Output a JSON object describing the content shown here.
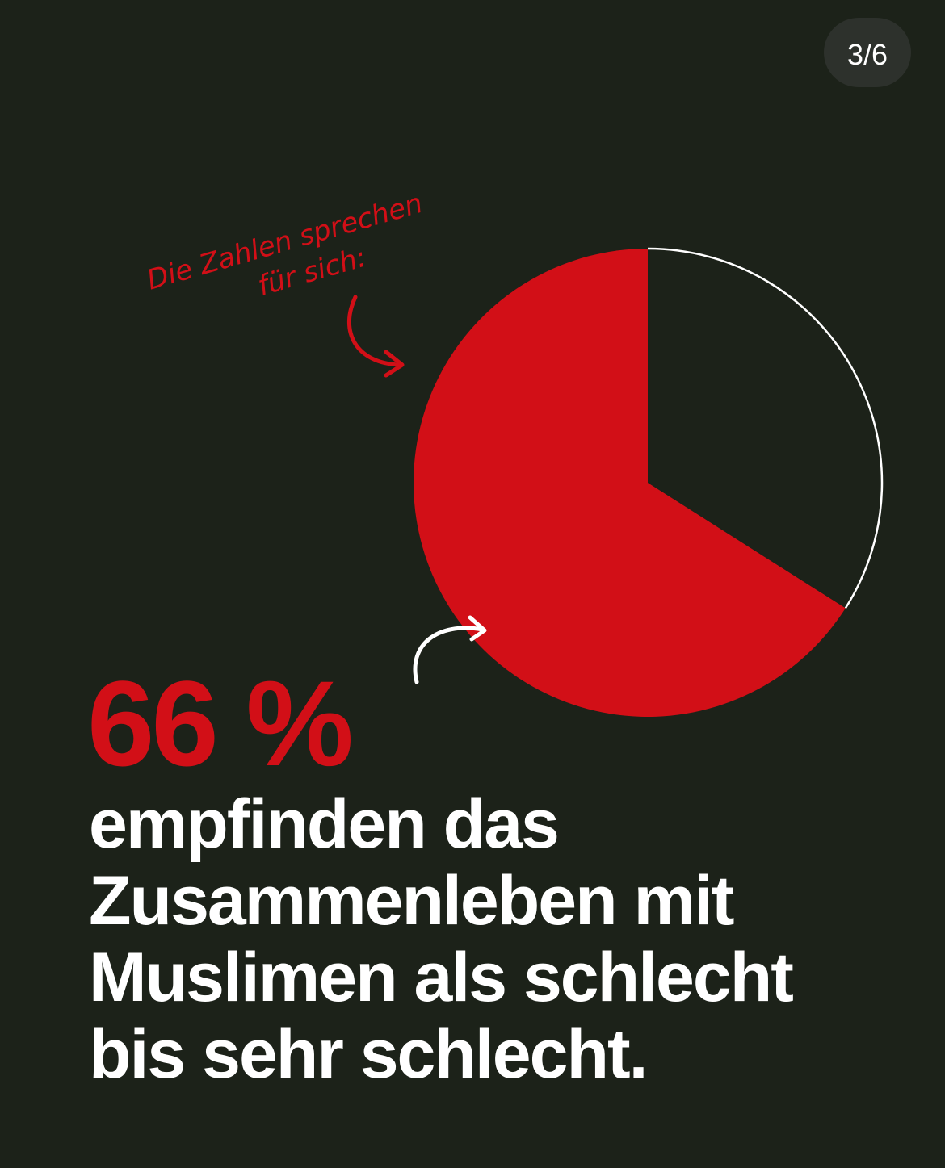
{
  "page_counter": "3/6",
  "chart_data": {
    "type": "pie",
    "annotation": [
      "Die Zahlen sprechen",
      "für sich:"
    ],
    "values": [
      66,
      34
    ],
    "value_labels": [
      "66 %",
      null
    ],
    "colors": [
      "#d20f17",
      "#1c2219"
    ],
    "outline_colors": [
      "none",
      "#ffffff"
    ],
    "description": [
      "empfinden das",
      "Zusammenleben mit",
      "Muslimen als schlecht",
      "bis sehr schlecht."
    ]
  }
}
